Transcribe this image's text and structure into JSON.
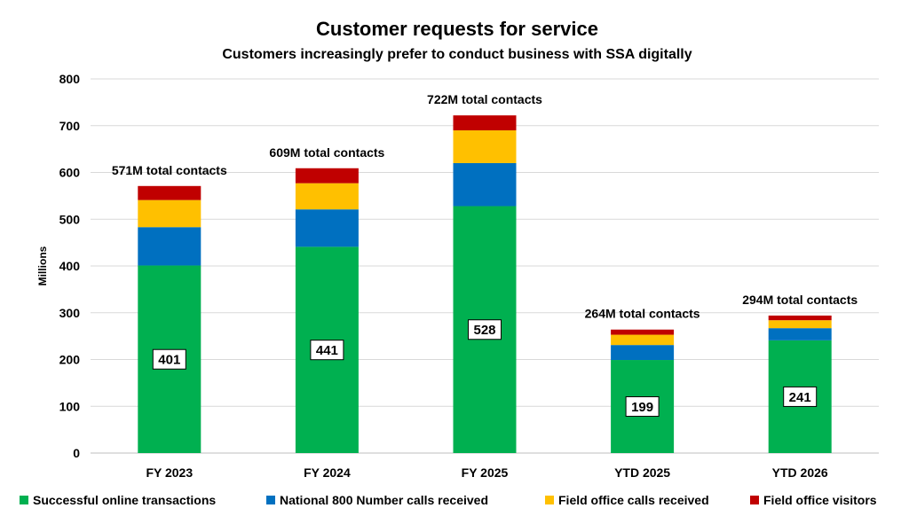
{
  "chart_data": {
    "type": "bar",
    "stacked": true,
    "title": "Customer requests for service",
    "subtitle": "Customers increasingly prefer to conduct business with SSA digitally",
    "ylabel": "Millions",
    "xlabel": "",
    "ylim": [
      0,
      800
    ],
    "yticks": [
      0,
      100,
      200,
      300,
      400,
      500,
      600,
      700,
      800
    ],
    "grid": true,
    "legend_position": "bottom",
    "categories": [
      "FY 2023",
      "FY 2024",
      "FY 2025",
      "YTD 2025",
      "YTD 2026"
    ],
    "totals_labels": [
      "571M total contacts",
      "609M total contacts",
      "722M total contacts",
      "264M total contacts",
      "294M total contacts"
    ],
    "series": [
      {
        "name": "Successful online transactions",
        "color": "#00B050",
        "values": [
          401,
          441,
          528,
          199,
          241
        ]
      },
      {
        "name": "National 800 Number calls received",
        "color": "#0070C0",
        "values": [
          82,
          80,
          92,
          32,
          26
        ]
      },
      {
        "name": "Field office calls received",
        "color": "#FFC000",
        "values": [
          58,
          56,
          70,
          22,
          17
        ]
      },
      {
        "name": "Field office visitors",
        "color": "#C00000",
        "values": [
          30,
          32,
          32,
          11,
          10
        ]
      }
    ]
  }
}
